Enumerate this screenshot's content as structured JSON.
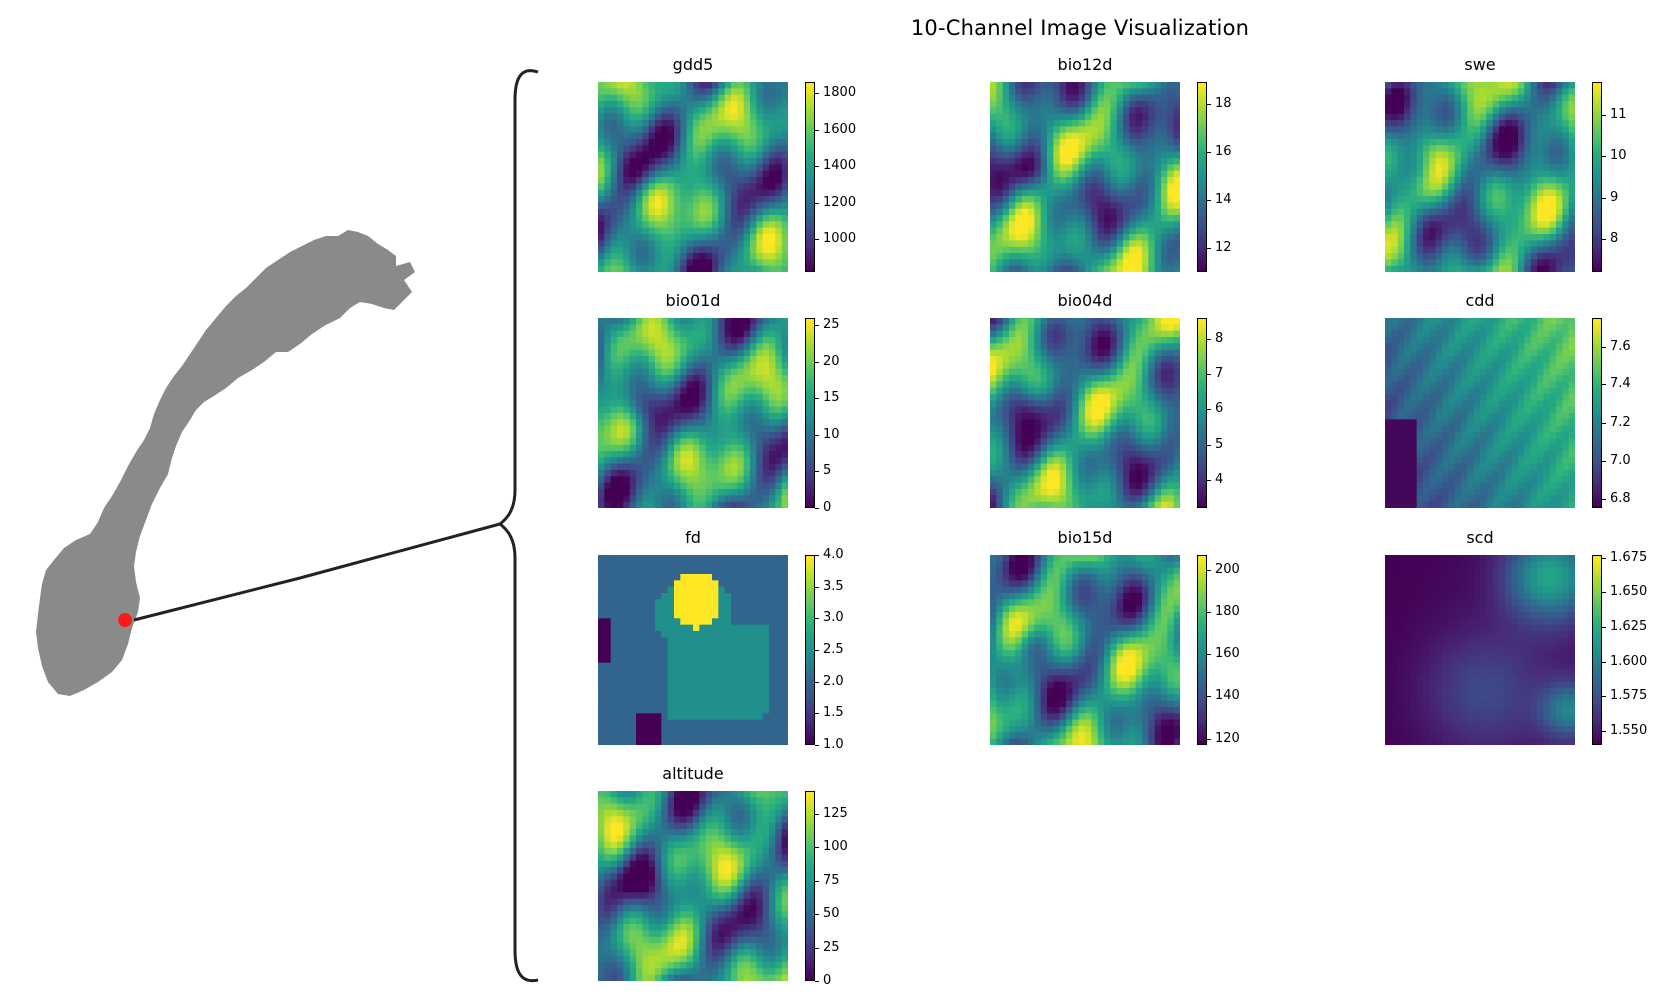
{
  "figure": {
    "title": "10-Channel Image Visualization",
    "panels": [
      {
        "name": "gdd5",
        "ticks": [
          "1800",
          "1600",
          "1400",
          "1200",
          "1000"
        ],
        "tickvals": [
          1800,
          1600,
          1400,
          1200,
          1000
        ],
        "vmin": 820,
        "vmax": 1860
      },
      {
        "name": "bio12d",
        "ticks": [
          "18",
          "16",
          "14",
          "12"
        ],
        "tickvals": [
          18,
          16,
          14,
          12
        ],
        "vmin": 11.0,
        "vmax": 18.9
      },
      {
        "name": "swe",
        "ticks": [
          "11",
          "10",
          "9",
          "8"
        ],
        "tickvals": [
          11,
          10,
          9,
          8
        ],
        "vmin": 7.2,
        "vmax": 11.8
      },
      {
        "name": "bio01d",
        "ticks": [
          "25",
          "20",
          "15",
          "10",
          "5",
          "0"
        ],
        "tickvals": [
          25,
          20,
          15,
          10,
          5,
          0
        ],
        "vmin": 0,
        "vmax": 26
      },
      {
        "name": "bio04d",
        "ticks": [
          "8",
          "7",
          "6",
          "5",
          "4"
        ],
        "tickvals": [
          8,
          7,
          6,
          5,
          4
        ],
        "vmin": 3.2,
        "vmax": 8.6
      },
      {
        "name": "cdd",
        "ticks": [
          "7.6",
          "7.4",
          "7.2",
          "7.0",
          "6.8"
        ],
        "tickvals": [
          7.6,
          7.4,
          7.2,
          7.0,
          6.8
        ],
        "vmin": 6.75,
        "vmax": 7.75
      },
      {
        "name": "fd",
        "ticks": [
          "4.0",
          "3.5",
          "3.0",
          "2.5",
          "2.0",
          "1.5",
          "1.0"
        ],
        "tickvals": [
          4.0,
          3.5,
          3.0,
          2.5,
          2.0,
          1.5,
          1.0
        ],
        "vmin": 1.0,
        "vmax": 4.0
      },
      {
        "name": "bio15d",
        "ticks": [
          "200",
          "180",
          "160",
          "140",
          "120"
        ],
        "tickvals": [
          200,
          180,
          160,
          140,
          120
        ],
        "vmin": 117,
        "vmax": 207
      },
      {
        "name": "scd",
        "ticks": [
          "1.675",
          "1.650",
          "1.625",
          "1.600",
          "1.575",
          "1.550"
        ],
        "tickvals": [
          1.675,
          1.65,
          1.625,
          1.6,
          1.575,
          1.55
        ],
        "vmin": 1.54,
        "vmax": 1.677
      },
      {
        "name": "altitude",
        "ticks": [
          "125",
          "100",
          "75",
          "50",
          "25",
          "0"
        ],
        "tickvals": [
          125,
          100,
          75,
          50,
          25,
          0
        ],
        "vmin": 0,
        "vmax": 142
      }
    ],
    "colormap": "viridis",
    "map": {
      "land_color": "#8a8a8a",
      "marker_color": "#ff1a1a"
    }
  },
  "chart_data": {
    "type": "heatmap",
    "title": "10-Channel Image Visualization",
    "series": [
      {
        "name": "gdd5",
        "colorbar_range": [
          820,
          1860
        ]
      },
      {
        "name": "bio12d",
        "colorbar_range": [
          11.0,
          18.9
        ]
      },
      {
        "name": "swe",
        "colorbar_range": [
          7.2,
          11.8
        ]
      },
      {
        "name": "bio01d",
        "colorbar_range": [
          0,
          26
        ]
      },
      {
        "name": "bio04d",
        "colorbar_range": [
          3.2,
          8.6
        ]
      },
      {
        "name": "cdd",
        "colorbar_range": [
          6.75,
          7.75
        ]
      },
      {
        "name": "fd",
        "colorbar_range": [
          1.0,
          4.0
        ]
      },
      {
        "name": "bio15d",
        "colorbar_range": [
          117,
          207
        ]
      },
      {
        "name": "scd",
        "colorbar_range": [
          1.54,
          1.677
        ]
      },
      {
        "name": "altitude",
        "colorbar_range": [
          0,
          142
        ]
      }
    ],
    "grid": false
  }
}
